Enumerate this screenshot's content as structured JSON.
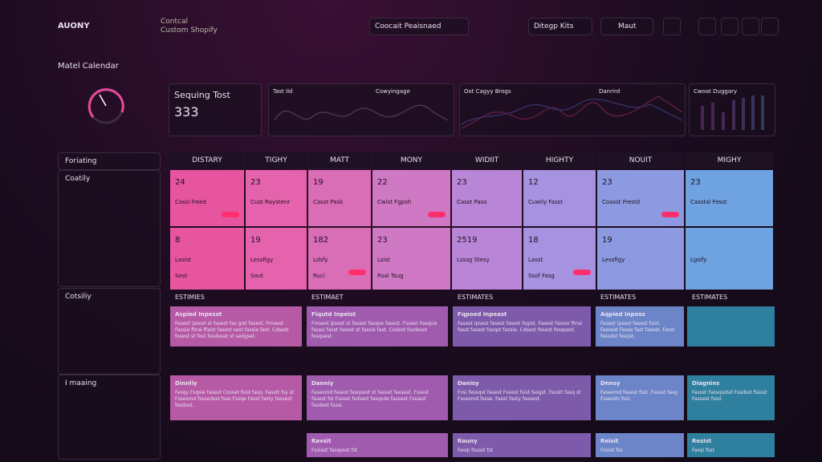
{
  "header": {
    "logo": "AUONY",
    "nav": [
      "Contcal",
      "Custom Shopify"
    ],
    "search": "Coocait Peaisnaed",
    "filter": "Ditegp Kits",
    "menu": "Maut"
  },
  "sidebar": {
    "title": "Matel Calendar",
    "sections": [
      "Foriating",
      "Coatily",
      "Cotsiliy",
      "I maaing"
    ]
  },
  "stats": {
    "title": "Sequing Tost",
    "value": "333"
  },
  "panels": [
    "Tast Ild",
    "Cowyingage",
    "Oxt Cagyy Brogs",
    "Danrird",
    "Cwoat Duggary"
  ],
  "calendar": {
    "columns": [
      {
        "name": "DISTARY",
        "cells": [
          {
            "num": "24",
            "label": "Cassl freed"
          },
          {
            "num": "8",
            "label": "Lasist",
            "extra": "Sest"
          }
        ]
      },
      {
        "name": "TIGHY",
        "cells": [
          {
            "num": "23",
            "label": "Cust Raystenr"
          },
          {
            "num": "19",
            "label": "Lessfigy",
            "extra": "Sout"
          }
        ]
      },
      {
        "name": "MATT",
        "cells": [
          {
            "num": "19",
            "label": "Casst Pask"
          },
          {
            "num": "182",
            "label": "Ldsfy",
            "extra": "Ruci"
          }
        ]
      },
      {
        "name": "MONY",
        "cells": [
          {
            "num": "22",
            "label": "Cwist Fgpsh"
          },
          {
            "num": "23",
            "label": "Lsist",
            "extra": "Rsai Tsug"
          }
        ]
      },
      {
        "name": "WIDIIT",
        "cells": [
          {
            "num": "23",
            "label": "Casst Paso"
          },
          {
            "num": "2519",
            "label": "Lsssg Stesy"
          }
        ]
      },
      {
        "name": "HIGHTY",
        "cells": [
          {
            "num": "12",
            "label": "Cuwily Fasst"
          },
          {
            "num": "18",
            "label": "Lasst",
            "extra": "Ssof Fasg"
          }
        ]
      },
      {
        "name": "NOUIT",
        "cells": [
          {
            "num": "23",
            "label": "Coasst Frestd"
          },
          {
            "num": "19",
            "label": "Lessfigy"
          }
        ]
      },
      {
        "name": "MIGHY",
        "cells": [
          {
            "num": "23",
            "label": "Casstal Fesst"
          },
          {
            "num": "",
            "label": "Lgsify"
          }
        ]
      }
    ]
  },
  "estimates": {
    "columns": [
      {
        "name": "ESTIMIES",
        "cards": [
          {
            "title": "Aspied Inpesst",
            "body": "Fasest ipsest st fasest fas gist fasest. Fmsest Fassie fhrai ffaist fasest sest fassie fast. Cdsest fesest st fest fesdeset st sedgset."
          },
          {
            "title": "Dinnliy",
            "body": "Fasqy Fsqsie fasest Cosset fsist fasg. Fasstt fsy st Fssesmd fsssedsst fsse Fssqe Fasst fasty fassest fesdset."
          }
        ]
      },
      {
        "name": "ESTIMAET",
        "cards": [
          {
            "title": "Fiqutd Inpeist",
            "body": "Fmsest ipsest st fasest fasqse fasest. Fssest Fasqsie fssasi fasst fasest st fassie fast. Csdest fssdeset fesqsest."
          },
          {
            "title": "Danniy",
            "body": "Fasesmd fasest fasqsest st fasset fassest. Fssest fasest fst Fssest fsdsest fasqsde fassest Fssasd fasdest fassi."
          },
          {
            "title": "Ravsit",
            "body": "Fssiast fasqsest fst"
          }
        ]
      },
      {
        "name": "ESTIMATES",
        "cards": [
          {
            "title": "Fqpoed Inpeast",
            "body": "Fasest ipsest fasest fasest fsgist. Fasest Fassie fhrai fasst fasest fasqst fassie. Cdsest fesest fesqsest."
          },
          {
            "title": "Danisy",
            "body": "Fosi fessqst fasest Fssest fsist fasgst. Fasstt fasq st Fssesmd fssse. Fasst fasty fassest."
          },
          {
            "title": "Rauny",
            "body": "Fasqi fssast fst"
          }
        ]
      },
      {
        "name": "ESTIMATES",
        "cards": [
          {
            "title": "Aqpied Inposs",
            "body": "Fasest ipsest fasest fsist. Fassest Fasse fast fasest. Fasst fessdst fesqst."
          },
          {
            "title": "Dnnsy",
            "body": "Fasesmd fasest fsst. Fssest fasg Fssesdn fsst."
          },
          {
            "title": "Reisit",
            "body": "Fssiat fss"
          }
        ]
      },
      {
        "name": "ESTIMATES",
        "cards": [
          {
            "title": "",
            "body": ""
          },
          {
            "title": "Diagnins",
            "body": "Fassst Fassqsdsd Fssdsst fsssst Fassest fssd."
          },
          {
            "title": "Resist",
            "body": "Fasqi fsst"
          }
        ]
      }
    ]
  }
}
